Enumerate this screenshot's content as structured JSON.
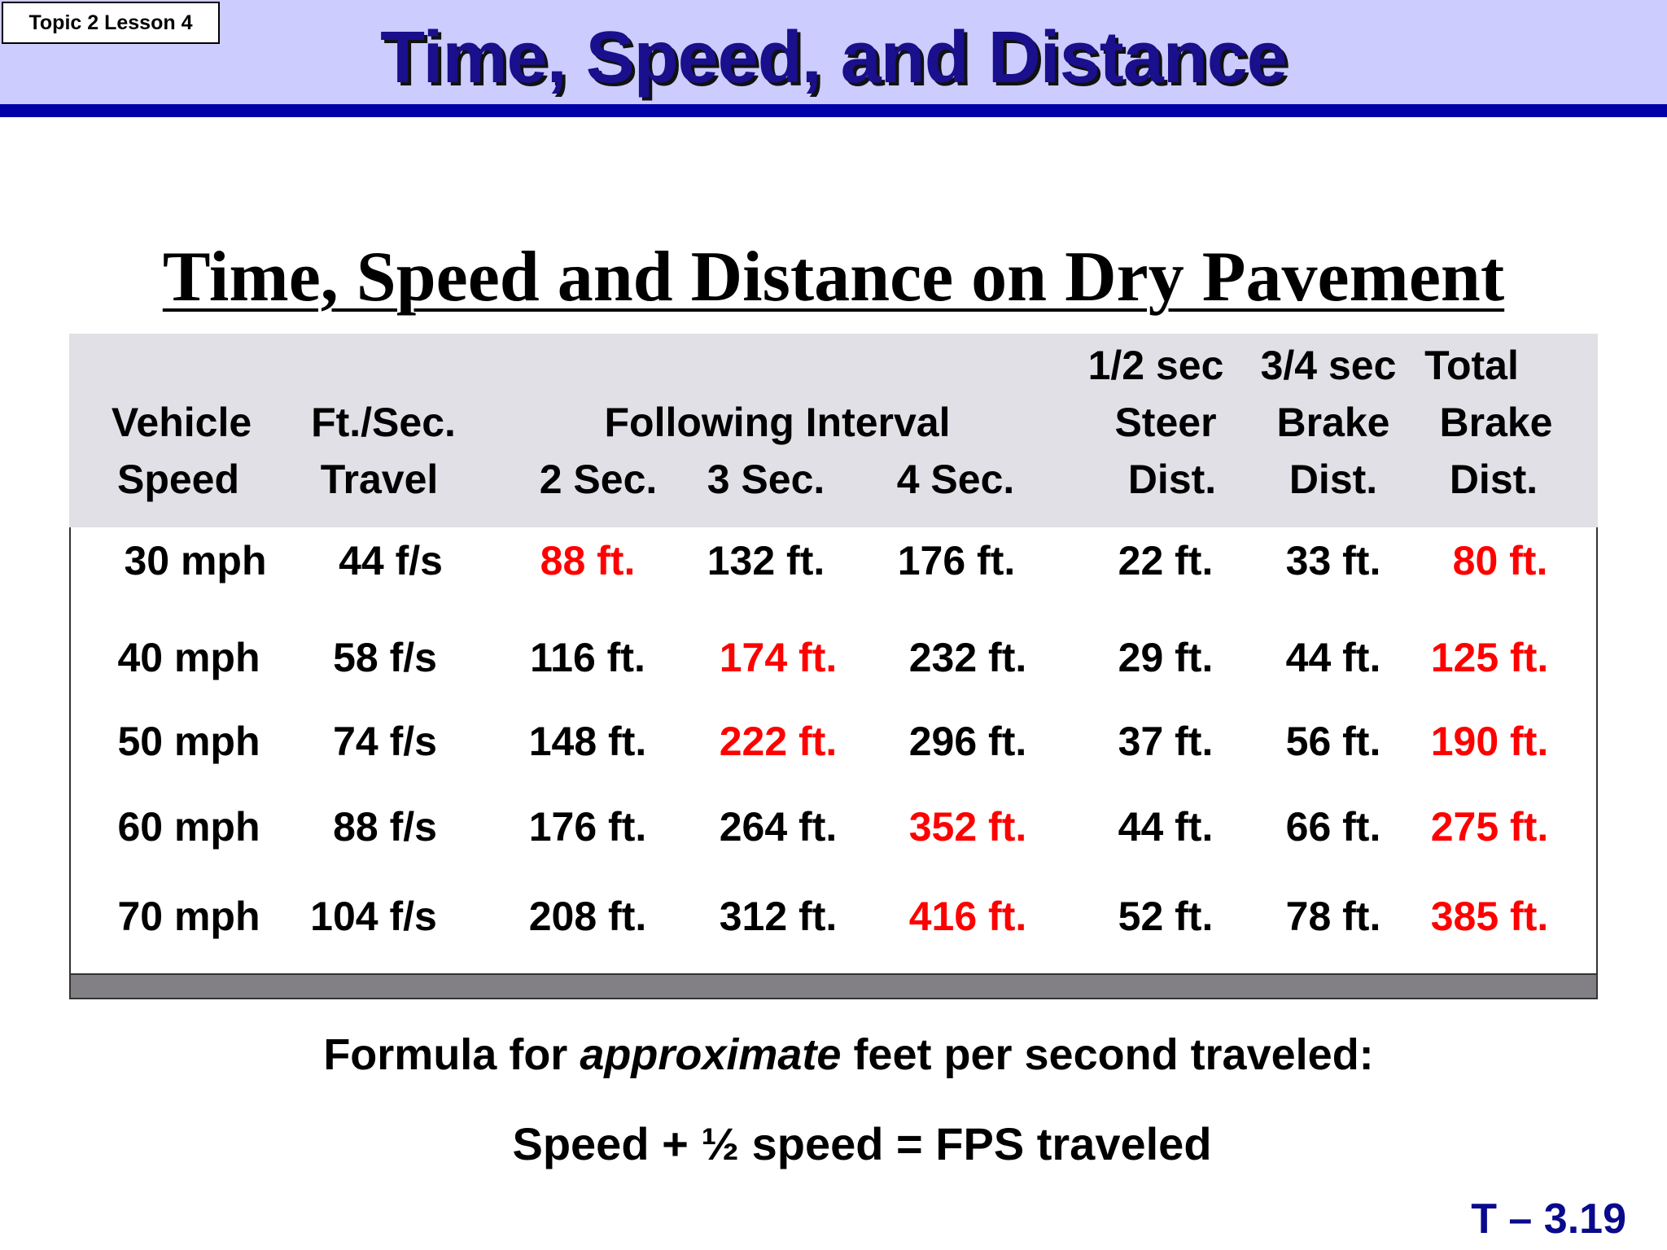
{
  "header": {
    "topic_label": "Topic 2 Lesson 4",
    "title": "Time, Speed, and Distance"
  },
  "subtitle": "Time, Speed and Distance on Dry Pavement",
  "table": {
    "headers": {
      "vehicle": [
        "Vehicle",
        "Speed"
      ],
      "travel": [
        "Ft./Sec.",
        "Travel"
      ],
      "following": "Following Interval",
      "intervals": [
        "2 Sec.",
        "3 Sec.",
        "4 Sec."
      ],
      "steer": [
        "1/2 sec",
        "Steer",
        "Dist."
      ],
      "brake": [
        "3/4 sec",
        "Brake",
        "Dist."
      ],
      "total": [
        "Total",
        "Brake",
        "Dist."
      ]
    },
    "rows": [
      {
        "speed": "30 mph",
        "fps": "44 f/s",
        "s2": "88 ft.",
        "s3": "132 ft.",
        "s4": "176 ft.",
        "steer": "22 ft.",
        "brake": "33 ft.",
        "total": "80 ft.",
        "highlight": "s2"
      },
      {
        "speed": "40 mph",
        "fps": "58 f/s",
        "s2": "116 ft.",
        "s3": "174 ft.",
        "s4": "232 ft.",
        "steer": "29 ft.",
        "brake": "44 ft.",
        "total": "125 ft.",
        "highlight": "s3"
      },
      {
        "speed": "50 mph",
        "fps": "74 f/s",
        "s2": "148 ft.",
        "s3": "222 ft.",
        "s4": "296 ft.",
        "steer": "37 ft.",
        "brake": "56 ft.",
        "total": "190 ft.",
        "highlight": "s3"
      },
      {
        "speed": "60 mph",
        "fps": "88 f/s",
        "s2": "176 ft.",
        "s3": "264 ft.",
        "s4": "352 ft.",
        "steer": "44 ft.",
        "brake": "66 ft.",
        "total": "275 ft.",
        "highlight": "s4"
      },
      {
        "speed": "70 mph",
        "fps": "104 f/s",
        "s2": "208 ft.",
        "s3": "312 ft.",
        "s4": "416 ft.",
        "steer": "52 ft.",
        "brake": "78 ft.",
        "total": "385 ft.",
        "highlight": "s4"
      }
    ],
    "highlight_color": "#ff0000"
  },
  "formula": {
    "before": "Formula for ",
    "emphasis": "approximate",
    "after": " feet per second traveled:",
    "equation": "Speed + ½ speed = FPS traveled"
  },
  "slide_number": "T – 3.19",
  "colors": {
    "header_band": "#ccccff",
    "header_rule": "#0000a8",
    "title": "#1a0f8c",
    "slide_number": "#0a0a8c"
  }
}
